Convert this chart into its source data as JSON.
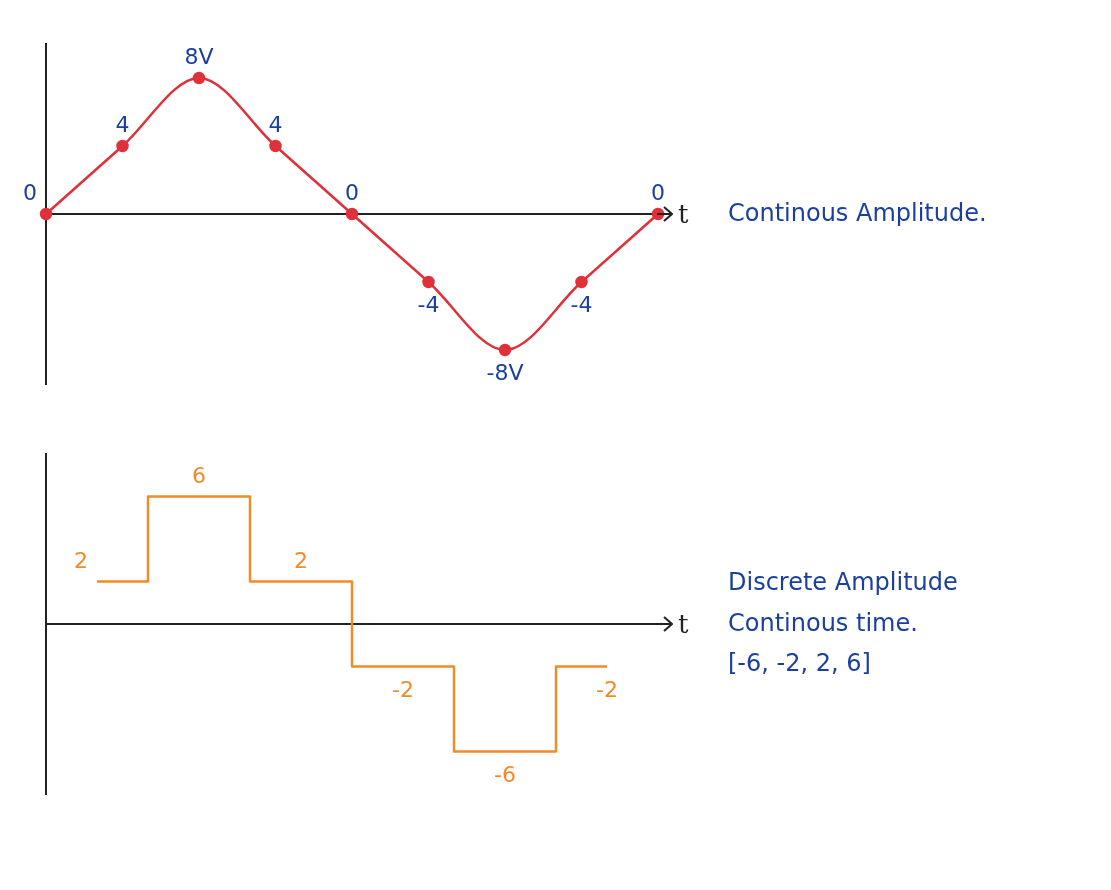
{
  "chart_data": [
    {
      "type": "line",
      "xlabel": "t",
      "categories": [
        null,
        null,
        null,
        null,
        null,
        null,
        null,
        null,
        null
      ],
      "series": [
        {
          "color": "#e0303a",
          "values": [
            0,
            4,
            8,
            4,
            0,
            -4,
            -8,
            -4,
            0
          ],
          "value_labels": [
            "0",
            "4",
            "8V",
            "4",
            "0",
            "-4",
            "-8V",
            "-4",
            "0"
          ]
        }
      ],
      "marker": "circle",
      "tick_labels": false,
      "annotations": [
        "Continous Amplitude."
      ]
    },
    {
      "type": "step",
      "xlabel": "t",
      "categories": [
        null,
        null,
        null,
        null,
        null,
        null
      ],
      "series": [
        {
          "color": "#f08c28",
          "values": [
            2,
            6,
            2,
            -2,
            -6,
            -2
          ]
        }
      ],
      "data_labels": true,
      "tick_labels": false,
      "annotations": [
        "Discrete Amplitude",
        "Continous time.",
        "[-6, -2, 2, 6]"
      ]
    }
  ]
}
